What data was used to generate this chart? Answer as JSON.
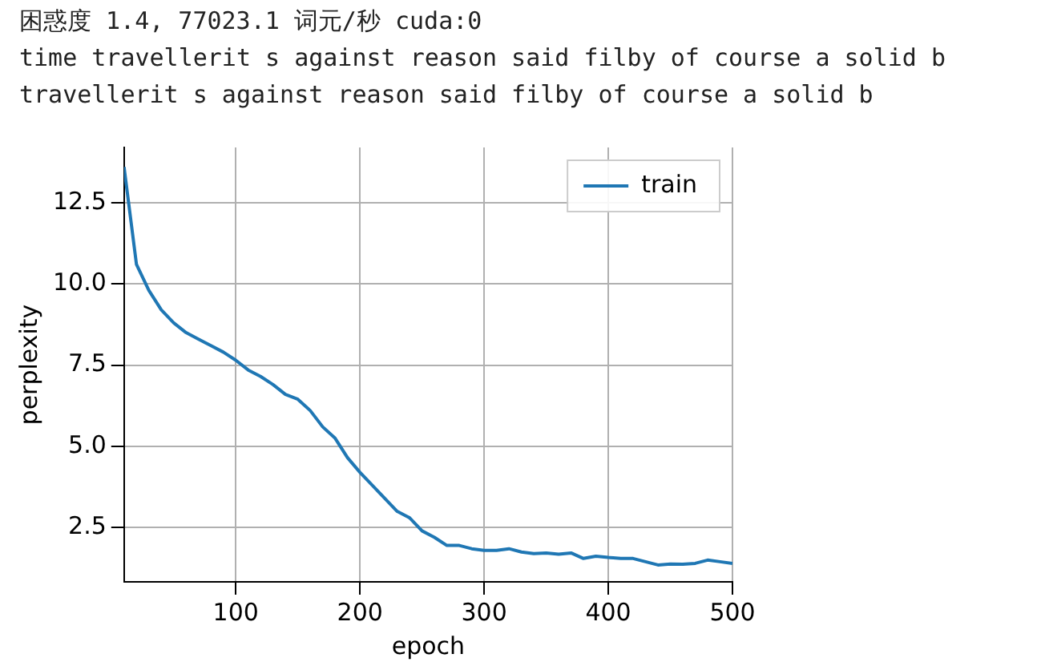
{
  "chart_data": {
    "type": "line",
    "title": "困惑度 1.4, 77023.1 词元/秒 cuda:0",
    "annotations": [
      "time travellerit s against reason said filby of course a solid b",
      "travellerit s against reason said filby of course a solid b"
    ],
    "xlabel": "epoch",
    "ylabel": "perplexity",
    "x": [
      10,
      20,
      30,
      40,
      50,
      60,
      70,
      80,
      90,
      100,
      110,
      120,
      130,
      140,
      150,
      160,
      170,
      180,
      190,
      200,
      210,
      220,
      230,
      240,
      250,
      260,
      270,
      280,
      290,
      300,
      310,
      320,
      330,
      340,
      350,
      360,
      370,
      380,
      390,
      400,
      410,
      420,
      430,
      440,
      450,
      460,
      470,
      480,
      490,
      500
    ],
    "series": [
      {
        "name": "train",
        "color": "#1f77b4",
        "values": [
          13.6,
          10.6,
          9.8,
          9.2,
          8.8,
          8.5,
          8.3,
          8.1,
          7.9,
          7.65,
          7.35,
          7.15,
          6.9,
          6.6,
          6.45,
          6.1,
          5.6,
          5.25,
          4.65,
          4.2,
          3.8,
          3.4,
          3.0,
          2.8,
          2.4,
          2.2,
          1.95,
          1.95,
          1.85,
          1.8,
          1.8,
          1.85,
          1.75,
          1.7,
          1.72,
          1.68,
          1.72,
          1.55,
          1.62,
          1.58,
          1.55,
          1.55,
          1.45,
          1.35,
          1.38,
          1.37,
          1.4,
          1.5,
          1.45,
          1.4
        ]
      }
    ],
    "xlim": [
      10,
      500
    ],
    "xticks": [
      100,
      200,
      300,
      400,
      500
    ],
    "ylim": [
      0.83,
      14.2
    ],
    "yticks": [
      2.5,
      {
        "value": 5,
        "label": "5.0"
      },
      7.5,
      {
        "value": 10,
        "label": "10.0"
      },
      12.5
    ],
    "grid": true,
    "legend": "top right",
    "marker": "none",
    "line_style": "solid"
  }
}
